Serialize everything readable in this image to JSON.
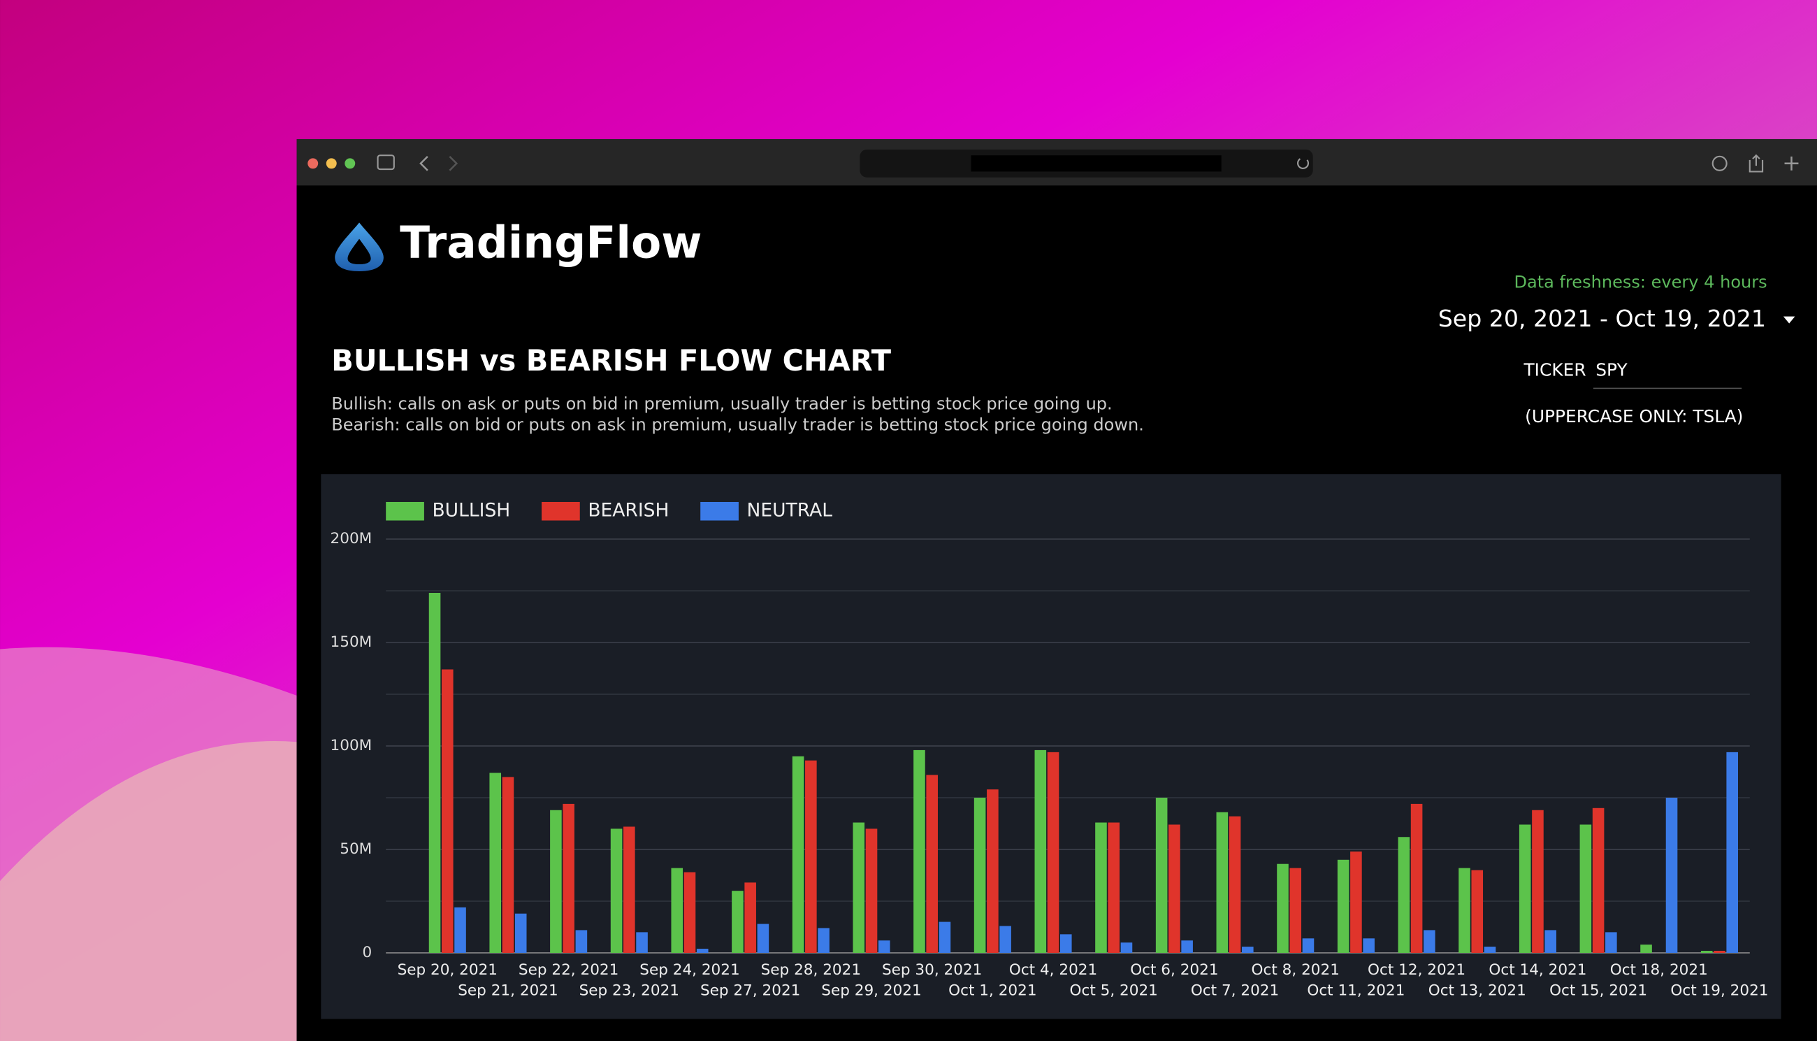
{
  "header": {
    "brand": "TradingFlow",
    "freshness": "Data freshness: every 4 hours",
    "date_range": "Sep 20, 2021 - Oct 19, 2021",
    "ticker_label": "TICKER",
    "ticker_value": "SPY",
    "ticker_hint": "(UPPERCASE ONLY: TSLA)"
  },
  "chart_data": {
    "type": "bar",
    "title": "BULLISH vs BEARISH FLOW CHART",
    "description": [
      "Bullish: calls on ask or puts on bid in premium, usually trader is betting stock price going up.",
      "Bearish: calls on bid or puts on ask in premium, usually trader is betting stock price going down."
    ],
    "categories": [
      "Sep 20, 2021",
      "Sep 21, 2021",
      "Sep 22, 2021",
      "Sep 23, 2021",
      "Sep 24, 2021",
      "Sep 27, 2021",
      "Sep 28, 2021",
      "Sep 29, 2021",
      "Sep 30, 2021",
      "Oct 1, 2021",
      "Oct 4, 2021",
      "Oct 5, 2021",
      "Oct 6, 2021",
      "Oct 7, 2021",
      "Oct 8, 2021",
      "Oct 11, 2021",
      "Oct 12, 2021",
      "Oct 13, 2021",
      "Oct 14, 2021",
      "Oct 15, 2021",
      "Oct 18, 2021",
      "Oct 19, 2021"
    ],
    "series": [
      {
        "name": "BULLISH",
        "color": "#5cc34b",
        "values": [
          174000000,
          87000000,
          69000000,
          60000000,
          41000000,
          30000000,
          95000000,
          63000000,
          98000000,
          75000000,
          98000000,
          63000000,
          75000000,
          68000000,
          43000000,
          45000000,
          56000000,
          41000000,
          62000000,
          62000000,
          4000000,
          1000000
        ]
      },
      {
        "name": "BEARISH",
        "color": "#e0342b",
        "values": [
          137000000,
          85000000,
          72000000,
          61000000,
          39000000,
          34000000,
          93000000,
          60000000,
          86000000,
          79000000,
          97000000,
          63000000,
          62000000,
          66000000,
          41000000,
          49000000,
          72000000,
          40000000,
          69000000,
          70000000,
          0,
          1000000
        ]
      },
      {
        "name": "NEUTRAL",
        "color": "#3b7be8",
        "values": [
          22000000,
          19000000,
          11000000,
          10000000,
          2000000,
          14000000,
          12000000,
          6000000,
          15000000,
          13000000,
          9000000,
          5000000,
          6000000,
          3000000,
          7000000,
          7000000,
          11000000,
          3000000,
          11000000,
          10000000,
          75000000,
          97000000
        ]
      }
    ],
    "ylim": [
      0,
      200000000
    ],
    "yticks": [
      0,
      {
        "value": 50000000,
        "label": "50M"
      },
      {
        "value": 100000000,
        "label": "100M"
      },
      {
        "value": 150000000,
        "label": "150M"
      },
      {
        "value": 200000000,
        "label": "200M"
      }
    ],
    "grid": true,
    "minor_grid": true,
    "legend": "top-left"
  }
}
